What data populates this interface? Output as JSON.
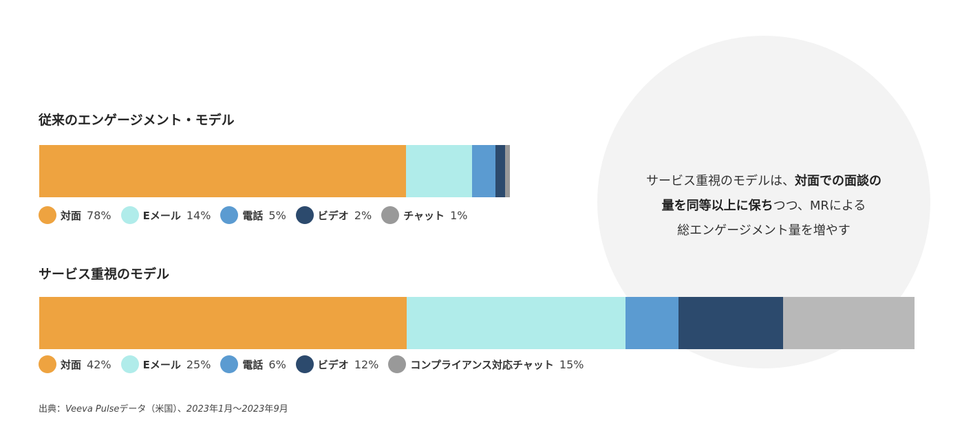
{
  "callout": {
    "line1_plain": "サービス重視のモデルは、",
    "line1_bold": "対面での面談の",
    "line2_bold": "量を同等以上に保ち",
    "line2_plain": "つつ、MRによる",
    "line3_plain": "総エンゲージメント量を増やす"
  },
  "source": {
    "prefix": "出典：",
    "italic1": "Veeva Pulse",
    "mid1": "データ（米国）、",
    "italic2": "2023",
    "mid2": "年",
    "italic3": "1",
    "mid3": "月～",
    "italic4": "2023",
    "mid4": "年",
    "italic5": "9",
    "suffix": "月"
  },
  "chart_data": [
    {
      "type": "bar",
      "orientation": "horizontal-stacked",
      "title": "従来のエンゲージメント・モデル",
      "series": [
        {
          "name": "対面",
          "value": 78,
          "display": "78%",
          "color": "#EEA340"
        },
        {
          "name": "Eメール",
          "value": 14,
          "display": "14%",
          "color": "#B0ECEA"
        },
        {
          "name": "電話",
          "value": 5,
          "display": "5%",
          "color": "#5B9BD1"
        },
        {
          "name": "ビデオ",
          "value": 2,
          "display": "2%",
          "color": "#2C4A6D"
        },
        {
          "name": "チャット",
          "value": 1,
          "display": "1%",
          "color": "#999999"
        }
      ],
      "scale_max": 186
    },
    {
      "type": "bar",
      "orientation": "horizontal-stacked",
      "title": "サービス重視のモデル",
      "series": [
        {
          "name": "対面",
          "value": 42,
          "display": "42%",
          "color": "#EEA340"
        },
        {
          "name": "Eメール",
          "value": 25,
          "display": "25%",
          "color": "#B0ECEA"
        },
        {
          "name": "電話",
          "value": 6,
          "display": "6%",
          "color": "#5B9BD1"
        },
        {
          "name": "ビデオ",
          "value": 12,
          "display": "12%",
          "color": "#2C4A6D"
        },
        {
          "name": "コンプライアンス対応チャット",
          "value": 15,
          "display": "15%",
          "color": "#B8B8B8",
          "legend_color": "#999999"
        }
      ],
      "scale_max": 100
    }
  ]
}
